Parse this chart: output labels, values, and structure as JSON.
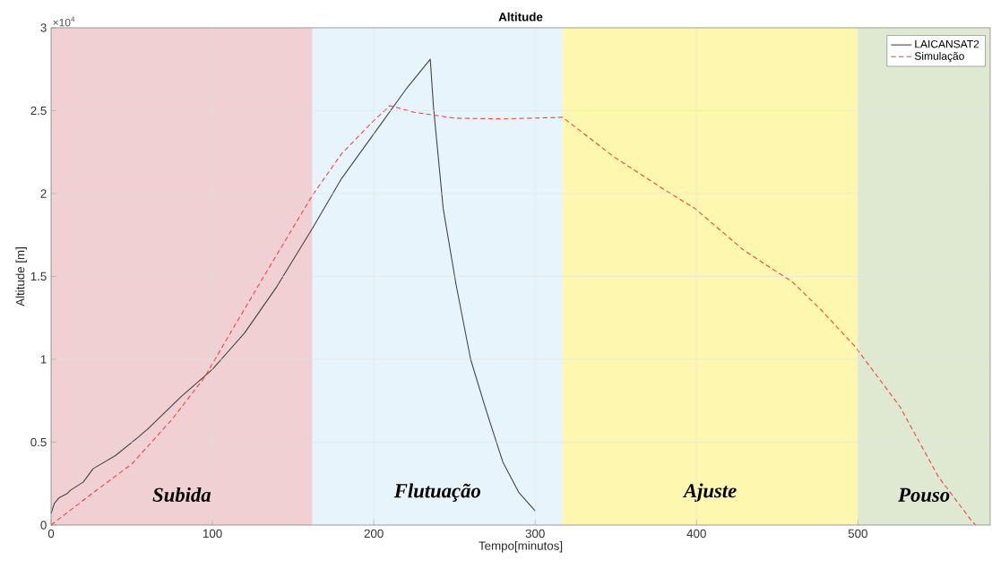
{
  "chart_data": {
    "type": "line",
    "title": "Altitude",
    "xlabel": "Tempo[minutos]",
    "ylabel": "Altitude [m]",
    "annotations": [
      "×10$^{4}$"
    ],
    "xlim": [
      0,
      582
    ],
    "xticks": [
      0,
      100,
      200,
      300,
      400,
      500
    ],
    "ylim": [
      0,
      3
    ],
    "yticks": [
      0,
      0.5,
      1,
      1.5,
      2,
      2.5,
      3
    ],
    "grid": true,
    "legend": "top right",
    "bands": [
      {
        "axis": "x",
        "from": 0,
        "to": 162,
        "label": "Subida",
        "color": "#f0d0d3"
      },
      {
        "axis": "x",
        "from": 162,
        "to": 317,
        "label": "Flutuação",
        "color": "#e8f4fb"
      },
      {
        "axis": "x",
        "from": 317,
        "to": 500,
        "label": "Ajuste",
        "color": "#fdf7b0"
      },
      {
        "axis": "x",
        "from": 500,
        "to": 582,
        "label": "Pouso",
        "color": "#dfe9d1"
      }
    ],
    "series": [
      {
        "name": "LAICANSAT2",
        "color": "#404040",
        "line_style": "solid",
        "x": [
          0,
          2,
          5,
          10,
          12,
          20,
          26,
          40,
          54,
          60,
          80,
          100,
          120,
          140,
          150,
          162,
          180,
          200,
          220,
          235,
          237,
          243,
          251,
          260,
          270,
          280,
          290,
          300
        ],
        "values": [
          0.07,
          0.13,
          0.165,
          0.19,
          0.21,
          0.26,
          0.34,
          0.42,
          0.53,
          0.58,
          0.77,
          0.94,
          1.16,
          1.44,
          1.6,
          1.79,
          2.09,
          2.36,
          2.63,
          2.81,
          2.52,
          1.91,
          1.45,
          1.0,
          0.68,
          0.38,
          0.195,
          0.086
        ]
      },
      {
        "name": "Simulação",
        "color": "#f04040",
        "line_style": "dashed",
        "x": [
          0,
          26,
          50,
          75,
          95,
          110,
          130,
          162,
          180,
          200,
          210,
          225,
          250,
          280,
          317,
          349,
          379,
          399,
          429,
          447,
          459,
          477,
          498,
          526,
          550,
          570,
          573
        ],
        "values": [
          0,
          0.195,
          0.368,
          0.638,
          0.89,
          1.14,
          1.47,
          1.99,
          2.24,
          2.44,
          2.53,
          2.49,
          2.455,
          2.45,
          2.46,
          2.22,
          2.03,
          1.91,
          1.66,
          1.545,
          1.47,
          1.3,
          1.08,
          0.715,
          0.29,
          0.032,
          0
        ]
      }
    ]
  }
}
